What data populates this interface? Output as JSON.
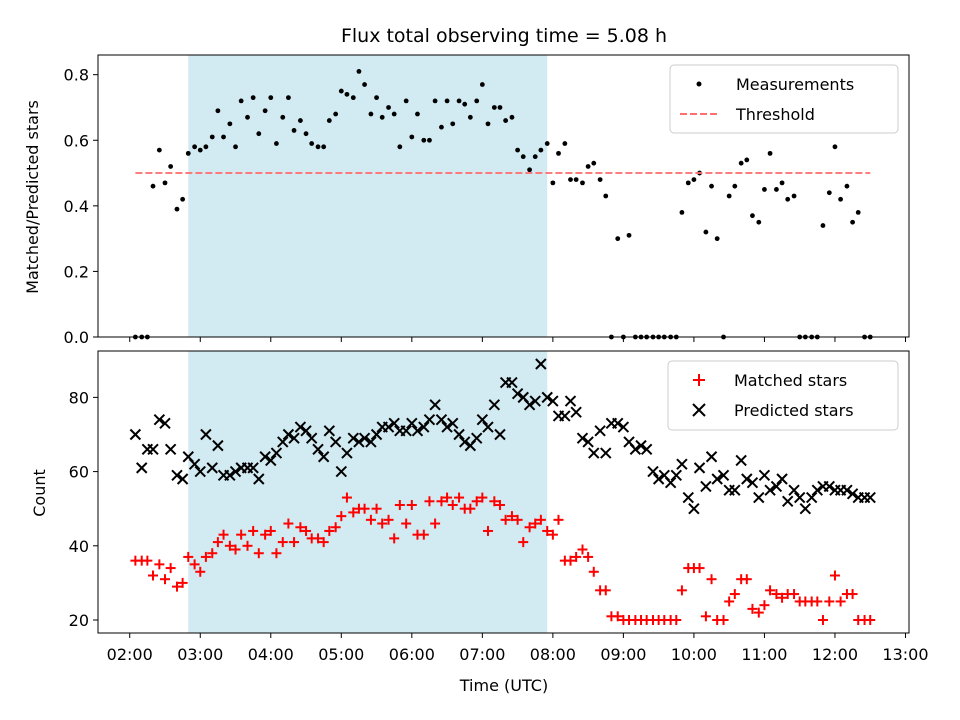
{
  "chart_data": [
    {
      "type": "scatter",
      "title": "Flux total observing time = 5.08 h",
      "ylabel": "Matched/Predicted stars",
      "ylim": [
        0,
        0.86
      ],
      "yticks": [
        "0.0",
        "0.2",
        "0.4",
        "0.6",
        "0.8"
      ],
      "xlim": [
        1.55,
        13.05
      ],
      "shaded_range": [
        2.83,
        7.92
      ],
      "shade_color": "#add8e6",
      "legend_position": "top-right",
      "series": [
        {
          "name": "Measurements",
          "marker": "dot",
          "color": "#000000",
          "x": [
            2.08,
            2.17,
            2.25,
            2.33,
            2.42,
            2.5,
            2.58,
            2.67,
            2.75,
            2.83,
            2.92,
            3.0,
            3.08,
            3.17,
            3.25,
            3.33,
            3.42,
            3.5,
            3.58,
            3.67,
            3.75,
            3.83,
            3.92,
            4.0,
            4.08,
            4.17,
            4.25,
            4.33,
            4.42,
            4.5,
            4.58,
            4.67,
            4.75,
            4.83,
            4.92,
            5.0,
            5.08,
            5.17,
            5.25,
            5.33,
            5.42,
            5.5,
            5.58,
            5.67,
            5.75,
            5.83,
            5.92,
            6.0,
            6.08,
            6.17,
            6.25,
            6.33,
            6.42,
            6.5,
            6.58,
            6.67,
            6.75,
            6.83,
            6.92,
            7.0,
            7.08,
            7.17,
            7.25,
            7.33,
            7.42,
            7.5,
            7.58,
            7.67,
            7.75,
            7.83,
            7.92,
            8.0,
            8.08,
            8.17,
            8.25,
            8.33,
            8.42,
            8.5,
            8.58,
            8.67,
            8.75,
            8.83,
            8.92,
            9.0,
            9.08,
            9.17,
            9.25,
            9.33,
            9.42,
            9.5,
            9.58,
            9.67,
            9.75,
            9.83,
            9.92,
            10.0,
            10.08,
            10.17,
            10.25,
            10.33,
            10.42,
            10.5,
            10.58,
            10.67,
            10.75,
            10.83,
            10.92,
            11.0,
            11.08,
            11.17,
            11.25,
            11.33,
            11.42,
            11.5,
            11.58,
            11.67,
            11.75,
            11.83,
            11.92,
            12.0,
            12.08,
            12.17,
            12.25,
            12.33,
            12.42,
            12.5
          ],
          "y": [
            0.0,
            0.0,
            0.0,
            0.46,
            0.57,
            0.47,
            0.52,
            0.39,
            0.42,
            0.56,
            0.58,
            0.57,
            0.58,
            0.61,
            0.69,
            0.61,
            0.65,
            0.58,
            0.72,
            0.67,
            0.73,
            0.62,
            0.69,
            0.73,
            0.59,
            0.67,
            0.73,
            0.63,
            0.66,
            0.62,
            0.59,
            0.58,
            0.58,
            0.66,
            0.68,
            0.75,
            0.74,
            0.73,
            0.81,
            0.77,
            0.68,
            0.73,
            0.67,
            0.7,
            0.68,
            0.58,
            0.72,
            0.61,
            0.68,
            0.6,
            0.6,
            0.72,
            0.64,
            0.72,
            0.65,
            0.72,
            0.71,
            0.67,
            0.72,
            0.77,
            0.65,
            0.7,
            0.7,
            0.66,
            0.67,
            0.57,
            0.55,
            0.51,
            0.55,
            0.57,
            0.59,
            0.47,
            0.56,
            0.59,
            0.48,
            0.48,
            0.47,
            0.52,
            0.53,
            0.48,
            0.43,
            0.0,
            0.3,
            0.0,
            0.31,
            0.0,
            0.0,
            0.0,
            0.0,
            0.0,
            0.0,
            0.0,
            0.0,
            0.38,
            0.47,
            0.48,
            0.5,
            0.32,
            0.46,
            0.3,
            0.0,
            0.43,
            0.46,
            0.53,
            0.54,
            0.37,
            0.35,
            0.45,
            0.56,
            0.45,
            0.47,
            0.42,
            0.43,
            0.0,
            0.0,
            0.0,
            0.0,
            0.34,
            0.44,
            0.58,
            0.42,
            0.46,
            0.35,
            0.38,
            0.0,
            0.0
          ]
        },
        {
          "name": "Threshold",
          "marker": "dashed-line",
          "color": "#ff6f6f",
          "x": [
            2.08,
            12.5
          ],
          "y": [
            0.5,
            0.5
          ]
        }
      ]
    },
    {
      "type": "scatter",
      "ylabel": "Count",
      "xlabel": "Time (UTC)",
      "ylim": [
        16.5,
        92.5
      ],
      "yticks": [
        "20",
        "40",
        "60",
        "80"
      ],
      "xlim": [
        1.55,
        13.05
      ],
      "xticks": [
        "02:00",
        "03:00",
        "04:00",
        "05:00",
        "06:00",
        "07:00",
        "08:00",
        "09:00",
        "10:00",
        "11:00",
        "12:00",
        "13:00"
      ],
      "shaded_range": [
        2.83,
        7.92
      ],
      "shade_color": "#add8e6",
      "legend_position": "top-right",
      "series": [
        {
          "name": "Matched stars",
          "marker": "plus",
          "color": "#ff0000",
          "x": [
            2.08,
            2.17,
            2.25,
            2.33,
            2.42,
            2.5,
            2.58,
            2.67,
            2.75,
            2.83,
            2.92,
            3.0,
            3.08,
            3.17,
            3.25,
            3.33,
            3.42,
            3.5,
            3.58,
            3.67,
            3.75,
            3.83,
            3.92,
            4.0,
            4.08,
            4.17,
            4.25,
            4.33,
            4.42,
            4.5,
            4.58,
            4.67,
            4.75,
            4.83,
            4.92,
            5.0,
            5.08,
            5.17,
            5.25,
            5.33,
            5.42,
            5.5,
            5.58,
            5.67,
            5.75,
            5.83,
            5.92,
            6.0,
            6.08,
            6.17,
            6.25,
            6.33,
            6.42,
            6.5,
            6.58,
            6.67,
            6.75,
            6.83,
            6.92,
            7.0,
            7.08,
            7.17,
            7.25,
            7.33,
            7.42,
            7.5,
            7.58,
            7.67,
            7.75,
            7.83,
            7.92,
            8.0,
            8.08,
            8.17,
            8.25,
            8.33,
            8.42,
            8.5,
            8.58,
            8.67,
            8.75,
            8.83,
            8.92,
            9.0,
            9.08,
            9.17,
            9.25,
            9.33,
            9.42,
            9.5,
            9.58,
            9.67,
            9.75,
            9.83,
            9.92,
            10.0,
            10.08,
            10.17,
            10.25,
            10.33,
            10.42,
            10.5,
            10.58,
            10.67,
            10.75,
            10.83,
            10.92,
            11.0,
            11.08,
            11.17,
            11.25,
            11.33,
            11.42,
            11.5,
            11.58,
            11.67,
            11.75,
            11.83,
            11.92,
            12.0,
            12.08,
            12.17,
            12.25,
            12.33,
            12.42,
            12.5
          ],
          "y": [
            36,
            36,
            36,
            32,
            35,
            31,
            34,
            29,
            30,
            37,
            35,
            33,
            37,
            38,
            41,
            43,
            40,
            39,
            43,
            40,
            44,
            38,
            43,
            44,
            38,
            41,
            46,
            41,
            45,
            44,
            42,
            42,
            41,
            44,
            45,
            48,
            53,
            49,
            50,
            50,
            47,
            50,
            46,
            47,
            42,
            51,
            46,
            51,
            43,
            43,
            52,
            46,
            52,
            53,
            51,
            53,
            50,
            50,
            52,
            53,
            44,
            52,
            51,
            47,
            48,
            47,
            41,
            45,
            46,
            47,
            44,
            43,
            47,
            36,
            36,
            37,
            39,
            37,
            33,
            28,
            28,
            21,
            21,
            20,
            20,
            20,
            20,
            20,
            20,
            20,
            20,
            20,
            20,
            28,
            34,
            34,
            34,
            21,
            31,
            20,
            20,
            25,
            27,
            31,
            31,
            23,
            22,
            24,
            28,
            27,
            26,
            27,
            27,
            25,
            25,
            25,
            25,
            20,
            25,
            32,
            25,
            27,
            27,
            20,
            20,
            20
          ]
        },
        {
          "name": "Predicted stars",
          "marker": "x",
          "color": "#000000",
          "x": [
            2.08,
            2.17,
            2.25,
            2.33,
            2.42,
            2.5,
            2.58,
            2.67,
            2.75,
            2.83,
            2.92,
            3.0,
            3.08,
            3.17,
            3.25,
            3.33,
            3.42,
            3.5,
            3.58,
            3.67,
            3.75,
            3.83,
            3.92,
            4.0,
            4.08,
            4.17,
            4.25,
            4.33,
            4.42,
            4.5,
            4.58,
            4.67,
            4.75,
            4.83,
            4.92,
            5.0,
            5.08,
            5.17,
            5.25,
            5.33,
            5.42,
            5.5,
            5.58,
            5.67,
            5.75,
            5.83,
            5.92,
            6.0,
            6.08,
            6.17,
            6.25,
            6.33,
            6.42,
            6.5,
            6.58,
            6.67,
            6.75,
            6.83,
            6.92,
            7.0,
            7.08,
            7.17,
            7.25,
            7.33,
            7.42,
            7.5,
            7.58,
            7.67,
            7.75,
            7.83,
            7.92,
            8.0,
            8.08,
            8.17,
            8.25,
            8.33,
            8.42,
            8.5,
            8.58,
            8.67,
            8.75,
            8.83,
            8.92,
            9.0,
            9.08,
            9.17,
            9.25,
            9.33,
            9.42,
            9.5,
            9.58,
            9.67,
            9.75,
            9.83,
            9.92,
            10.0,
            10.08,
            10.17,
            10.25,
            10.33,
            10.42,
            10.5,
            10.58,
            10.67,
            10.75,
            10.83,
            10.92,
            11.0,
            11.08,
            11.17,
            11.25,
            11.33,
            11.42,
            11.5,
            11.58,
            11.67,
            11.75,
            11.83,
            11.92,
            12.0,
            12.08,
            12.17,
            12.25,
            12.33,
            12.42,
            12.5
          ],
          "y": [
            70,
            61,
            66,
            66,
            74,
            73,
            66,
            59,
            58,
            64,
            62,
            60,
            70,
            61,
            67,
            59,
            59,
            60,
            61,
            61,
            61,
            58,
            64,
            63,
            65,
            68,
            70,
            69,
            72,
            71,
            69,
            66,
            64,
            71,
            68,
            60,
            65,
            69,
            68,
            69,
            68,
            70,
            72,
            72,
            73,
            71,
            71,
            73,
            71,
            72,
            74,
            78,
            74,
            72,
            73,
            70,
            68,
            67,
            69,
            74,
            72,
            78,
            70,
            84,
            84,
            81,
            80,
            78,
            79,
            89,
            80,
            79,
            75,
            75,
            79,
            76,
            69,
            68,
            65,
            71,
            65,
            73,
            73,
            72,
            68,
            66,
            67,
            66,
            60,
            58,
            59,
            57,
            59,
            62,
            53,
            50,
            61,
            56,
            64,
            58,
            59,
            55,
            55,
            63,
            58,
            57,
            53,
            59,
            55,
            56,
            58,
            52,
            55,
            53,
            50,
            53,
            55,
            56,
            56,
            55,
            55,
            55,
            54,
            53,
            53,
            53
          ]
        }
      ]
    }
  ]
}
